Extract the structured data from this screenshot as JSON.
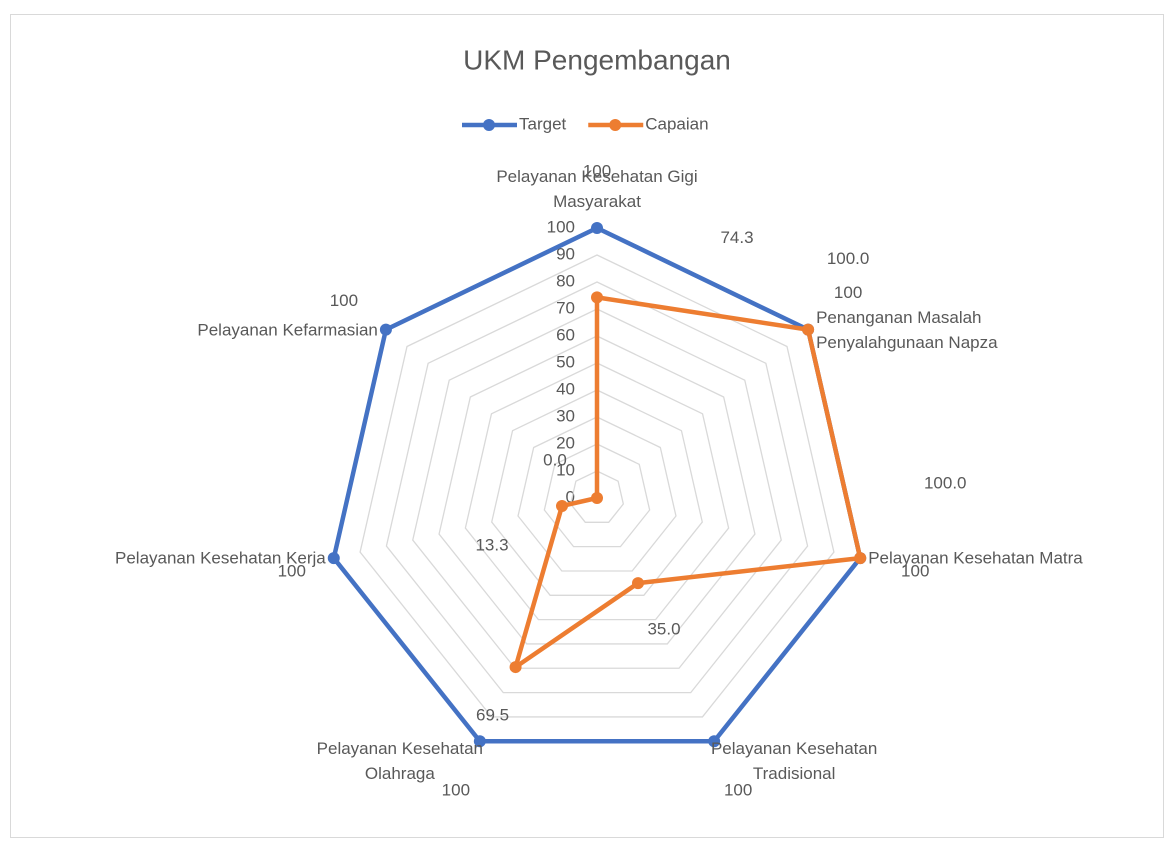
{
  "chart_data": {
    "type": "radar",
    "title": "UKM Pengembangan",
    "categories": [
      "Pelayanan Kesehatan Gigi Masyarakat",
      "Penanganan Masalah Penyalahgunaan Napza",
      "Pelayanan Kesehatan Matra",
      "Pelayanan Kesehatan Tradisional",
      "Pelayanan Kesehatan Olahraga",
      "Pelayanan Kesehatan Kerja",
      "Pelayanan Kefarmasian"
    ],
    "series": [
      {
        "name": "Target",
        "color": "#4472c4",
        "values": [
          100,
          100,
          100,
          100,
          100,
          100,
          100
        ]
      },
      {
        "name": "Capaian",
        "color": "#ed7d31",
        "values": [
          74.3,
          100,
          100,
          35,
          69.5,
          13.3,
          0
        ],
        "value_labels": [
          "74.3",
          "100.0",
          "100.0",
          "35.0",
          "69.5",
          "13.3",
          "0.0"
        ]
      }
    ],
    "rlim": [
      0,
      100
    ],
    "rticks": [
      0,
      10,
      20,
      30,
      40,
      50,
      60,
      70,
      80,
      90,
      100
    ],
    "grid": true,
    "legend": "top"
  }
}
